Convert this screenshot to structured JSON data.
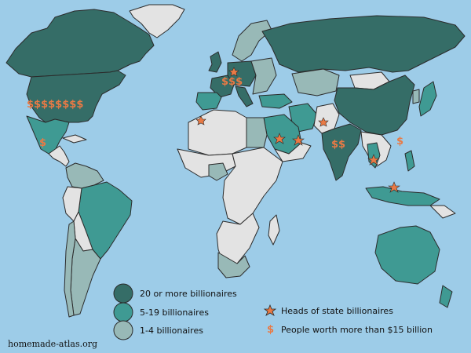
{
  "legend": {
    "tier1_label": "20 or more billionaires",
    "tier2_label": "5-19 billionaires",
    "tier3_label": "1-4 billionaires",
    "heads_label": "Heads of state billionaires",
    "rich_label": "People worth more than $15 billion",
    "dollar_symbol": "$"
  },
  "credit": "homemade-atlas.org",
  "markers": {
    "usa_dollars": "$$$$$$$$",
    "mexico_dollar": "$",
    "india_dollars": "$$",
    "hongkong_dollar": "$",
    "europe_dollars": "$$$"
  },
  "colors": {
    "ocean": "#9dcce8",
    "tier1": "#356d67",
    "tier2": "#3f9a93",
    "tier3": "#98b9b7",
    "no_billionaires": "#e3e3e3",
    "marker": "#e97a45"
  }
}
